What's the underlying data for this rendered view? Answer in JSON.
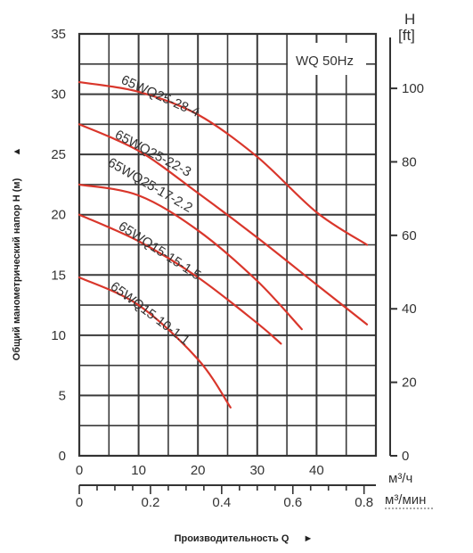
{
  "chart_data": {
    "type": "line",
    "annotation": "WQ 50Hz",
    "ylabel": "Общий манометрический напор H (м)",
    "ylabel_arrow": "▲",
    "xlabel": "Производительность Q",
    "xlabel_arrow": "►",
    "right_axis_title_1": "H",
    "right_axis_title_2": "[ft]",
    "x_unit_primary": "м³/ч",
    "x_unit_secondary": "м³/мин",
    "xlim": [
      0,
      50
    ],
    "ylim": [
      0,
      35
    ],
    "x_ticks_primary": [
      "0",
      "10",
      "20",
      "30",
      "40"
    ],
    "x_ticks_secondary": [
      "0",
      "0.2",
      "0.4",
      "0.6",
      "0.8"
    ],
    "y_ticks_left": [
      "0",
      "5",
      "10",
      "15",
      "20",
      "25",
      "30",
      "35"
    ],
    "y_ticks_right": [
      "0",
      "20",
      "40",
      "60",
      "80",
      "100"
    ],
    "grid": true,
    "curve_color": "#d9362b",
    "series": [
      {
        "name": "65WQ25-28-4",
        "x": [
          0,
          10,
          20,
          30,
          40,
          48.5
        ],
        "y": [
          31,
          30.2,
          28.3,
          24.8,
          20.2,
          17.5
        ]
      },
      {
        "name": "65WQ25-22-3",
        "x": [
          0,
          10,
          20,
          30,
          40,
          48.5
        ],
        "y": [
          27.5,
          25.3,
          21.8,
          18.1,
          14.2,
          10.9
        ]
      },
      {
        "name": "65WQ25-17-2.2",
        "x": [
          0,
          10,
          20,
          30,
          37.5
        ],
        "y": [
          22.5,
          21.6,
          18.7,
          14.5,
          10.5
        ]
      },
      {
        "name": "65WQ15-15-1.5",
        "x": [
          0,
          10,
          20,
          30,
          34
        ],
        "y": [
          20,
          17.8,
          14.8,
          11,
          9.3
        ]
      },
      {
        "name": "65WQ15-10-1.1",
        "x": [
          0,
          10,
          20,
          25.5
        ],
        "y": [
          14.8,
          12.5,
          8,
          4
        ]
      }
    ]
  }
}
